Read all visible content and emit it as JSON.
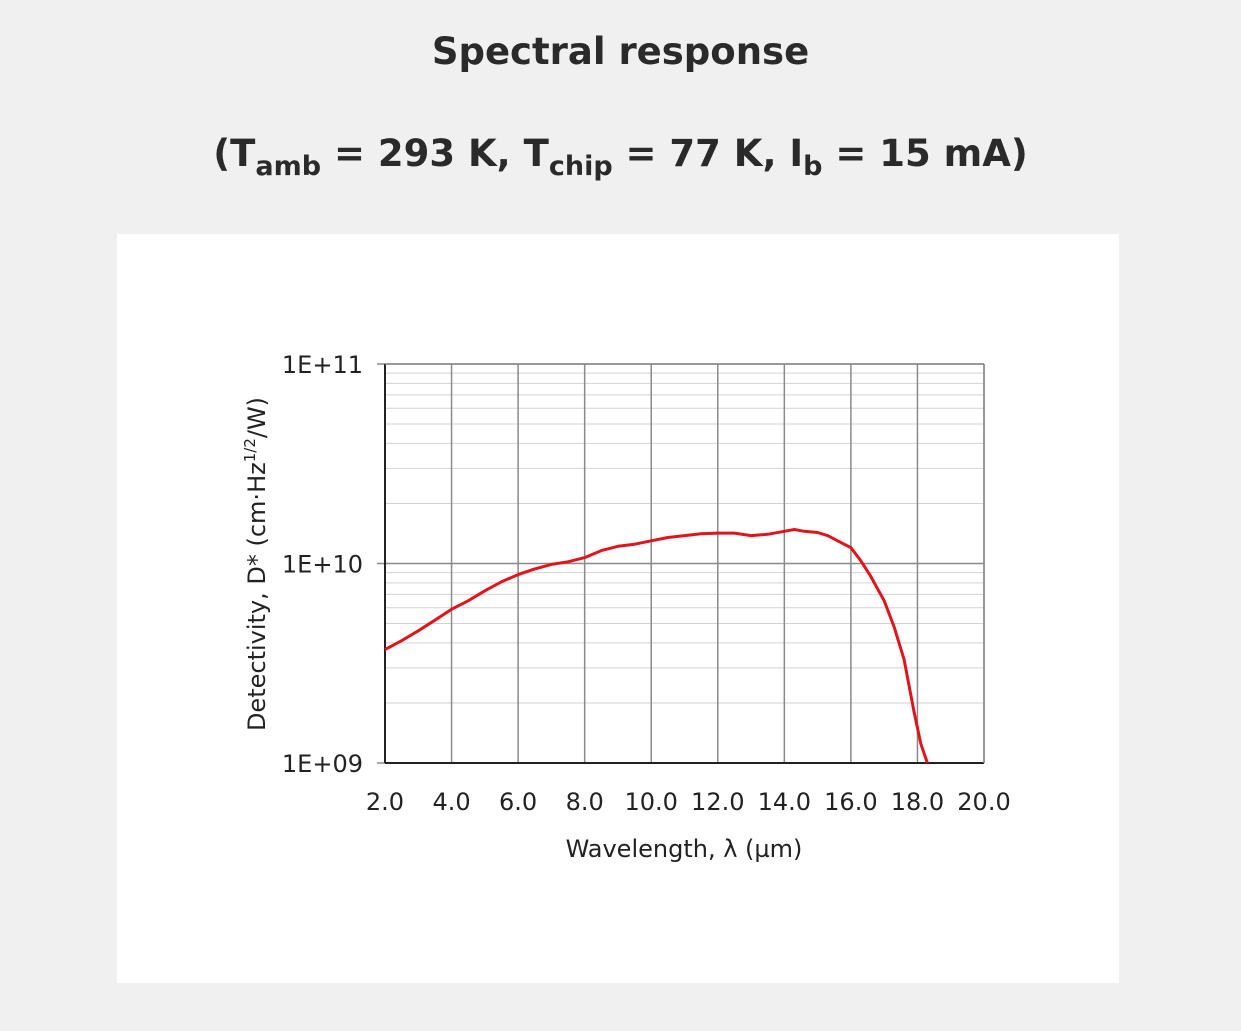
{
  "header": {
    "title": "Spectral response",
    "conditions": {
      "open": "(T",
      "sub1": "amb",
      "part2": " = 293 K, T",
      "sub2": "chip",
      "part3": " = 77 K, I",
      "sub3": "b",
      "part4": " = 15 mA)"
    }
  },
  "chart_data": {
    "type": "line",
    "xlabel": "Wavelength, λ (µm)",
    "ylabel_main": "Detectivity, D* (cm·Hz",
    "ylabel_sup": "1/2",
    "ylabel_end": "/W)",
    "xlim": [
      2.0,
      20.0
    ],
    "ylim": [
      1000000000.0,
      100000000000.0
    ],
    "yscale": "log",
    "grid": true,
    "xticks": [
      2,
      4,
      6,
      8,
      10,
      12,
      14,
      16,
      18,
      20
    ],
    "xtick_labels": [
      "2.0",
      "4.0",
      "6.0",
      "8.0",
      "10.0",
      "12.0",
      "14.0",
      "16.0",
      "18.0",
      "20.0"
    ],
    "yticks": [
      1000000000.0,
      10000000000.0,
      100000000000.0
    ],
    "ytick_labels": [
      "1E+09",
      "1E+10",
      "1E+11"
    ],
    "line_color": "#e0151c",
    "series": [
      {
        "x": [
          2.0,
          2.5,
          3.0,
          3.5,
          4.0,
          4.5,
          5.0,
          5.5,
          6.0,
          6.5,
          7.0,
          7.5,
          8.0,
          8.5,
          9.0,
          9.5,
          10.0,
          10.5,
          11.0,
          11.5,
          12.0,
          12.5,
          13.0,
          13.5,
          14.0,
          14.3,
          14.6,
          15.0,
          15.3,
          15.6,
          16.0,
          16.3,
          16.6,
          17.0,
          17.3,
          17.6,
          17.9,
          18.1,
          18.3
        ],
        "y": [
          3700000000.0,
          4100000000.0,
          4600000000.0,
          5200000000.0,
          5900000000.0,
          6500000000.0,
          7300000000.0,
          8100000000.0,
          8800000000.0,
          9400000000.0,
          9900000000.0,
          10200000000.0,
          10700000000.0,
          11600000000.0,
          12200000000.0,
          12500000000.0,
          13000000000.0,
          13500000000.0,
          13800000000.0,
          14100000000.0,
          14200000000.0,
          14200000000.0,
          13800000000.0,
          14000000000.0,
          14500000000.0,
          14800000000.0,
          14500000000.0,
          14300000000.0,
          13800000000.0,
          13000000000.0,
          12000000000.0,
          10300000000.0,
          8600000000.0,
          6500000000.0,
          4800000000.0,
          3300000000.0,
          1800000000.0,
          1250000000.0,
          1000000000.0
        ]
      }
    ]
  }
}
